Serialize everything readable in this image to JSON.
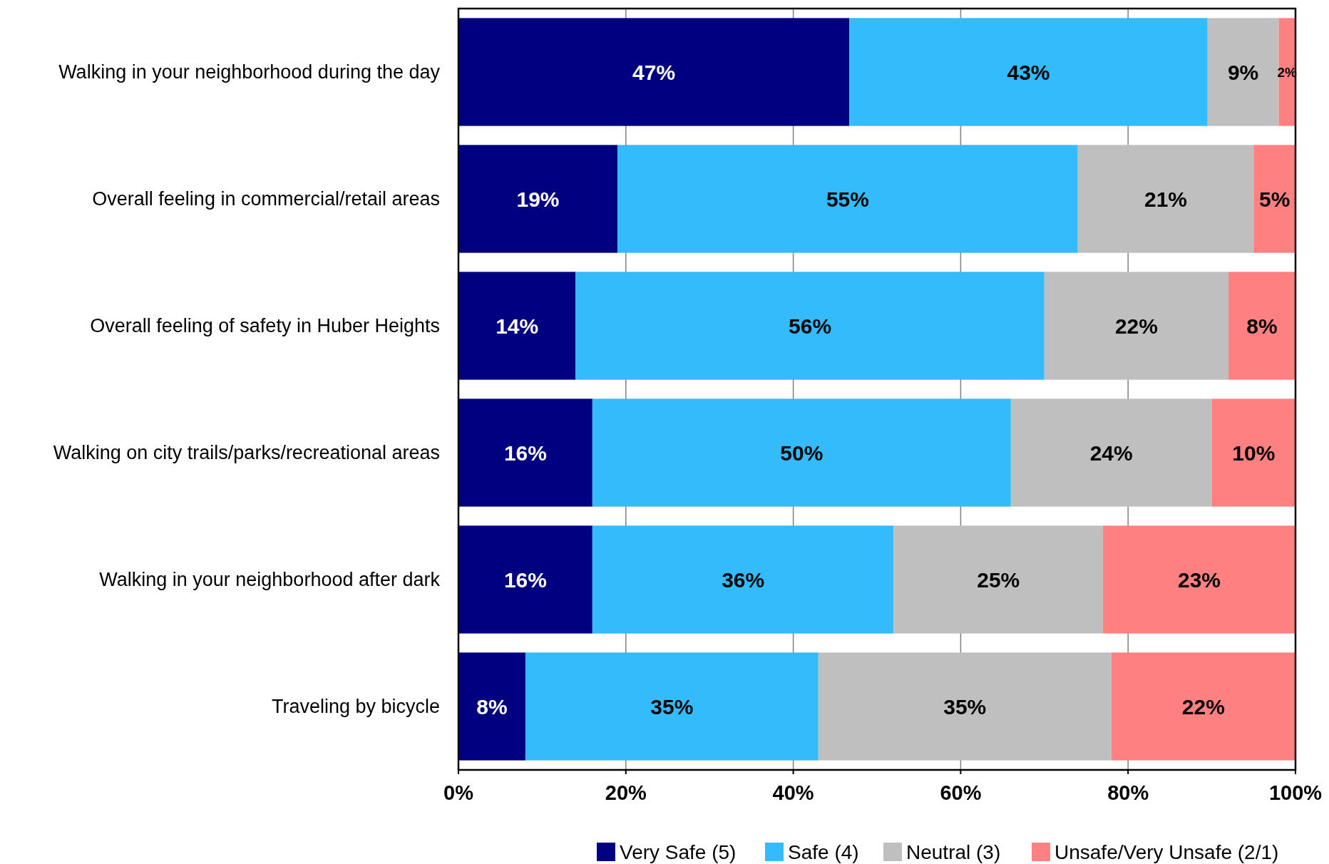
{
  "chart_data": {
    "type": "bar",
    "orientation": "horizontal",
    "stacked": true,
    "categories": [
      "Walking in your neighborhood during the day",
      "Overall feeling in commercial/retail areas",
      "Overall feeling of safety in Huber Heights",
      "Walking on city trails/parks/recreational areas",
      "Walking in your neighborhood after dark",
      "Traveling by bicycle"
    ],
    "series": [
      {
        "name": "Very Safe (5)",
        "color": "#000080",
        "values": [
          46.7,
          19,
          14,
          16,
          16,
          8
        ],
        "value_labels": [
          "47%",
          "19%",
          "14%",
          "16%",
          "16%",
          "8%"
        ]
      },
      {
        "name": "Safe (4)",
        "color": "#33bbfb",
        "values": [
          42.8,
          55,
          56,
          50,
          36,
          35
        ],
        "value_labels": [
          "43%",
          "55%",
          "56%",
          "50%",
          "36%",
          "35%"
        ]
      },
      {
        "name": "Neutral (3)",
        "color": "#bfbfbf",
        "values": [
          8.5,
          21,
          22,
          24,
          25,
          35
        ],
        "value_labels": [
          "9%",
          "21%",
          "22%",
          "24%",
          "25%",
          "35%"
        ]
      },
      {
        "name": "Unsafe/Very Unsafe (2/1)",
        "color": "#fe8080",
        "values": [
          2.0,
          5,
          8,
          10,
          23,
          22
        ],
        "value_labels": [
          "2%",
          "5%",
          "8%",
          "10%",
          "23%",
          "22%"
        ]
      }
    ],
    "xlim": [
      0,
      100
    ],
    "xticks": [
      {
        "value": 0,
        "label": "0%"
      },
      {
        "value": 20,
        "label": "20%"
      },
      {
        "value": 40,
        "label": "40%"
      },
      {
        "value": 60,
        "label": "60%"
      },
      {
        "value": 80,
        "label": "80%"
      },
      {
        "value": 100,
        "label": "100%"
      }
    ],
    "grid": "x",
    "legend": "bottom"
  }
}
